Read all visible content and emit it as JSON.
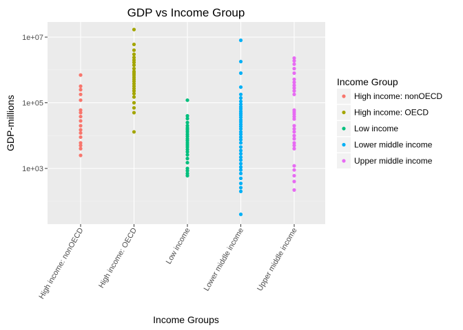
{
  "chart_data": {
    "type": "scatter",
    "title": "GDP vs Income Group",
    "xlabel": "Income Groups",
    "ylabel": "GDP-millions",
    "y_scale": "log10",
    "y_ticks": [
      1000,
      100000,
      10000000
    ],
    "y_tick_labels": [
      "1e+03",
      "1e+05",
      "1e+07"
    ],
    "ylim": [
      30,
      23000000
    ],
    "grid": true,
    "legend_position": "right",
    "legend_title": "Income Group",
    "categories": [
      "High income: nonOECD",
      "High income: OECD",
      "Low income",
      "Lower middle income",
      "Upper middle income"
    ],
    "series": [
      {
        "name": "High income: nonOECD",
        "color": "#F8766D",
        "values": [
          700000,
          320000,
          250000,
          180000,
          120000,
          60000,
          50000,
          38000,
          28000,
          20000,
          15000,
          12000,
          9000,
          6000,
          5000,
          4000,
          2500
        ]
      },
      {
        "name": "High income: OECD",
        "color": "#A3A500",
        "values": [
          17000000,
          6000000,
          4000000,
          3000000,
          2400000,
          2000000,
          1700000,
          1400000,
          1100000,
          900000,
          800000,
          700000,
          600000,
          520000,
          450000,
          380000,
          320000,
          270000,
          230000,
          190000,
          150000,
          100000,
          70000,
          50000,
          13000
        ]
      },
      {
        "name": "Low income",
        "color": "#00BF7D",
        "values": [
          120000,
          40000,
          33000,
          25000,
          20000,
          17000,
          15000,
          13000,
          11000,
          9500,
          8000,
          7000,
          6000,
          5200,
          4500,
          3800,
          3200,
          2600,
          2000,
          1500,
          1000,
          850,
          700,
          600
        ]
      },
      {
        "name": "Lower middle income",
        "color": "#00B0F6",
        "values": [
          8000000,
          1800000,
          800000,
          300000,
          180000,
          140000,
          110000,
          90000,
          75000,
          65000,
          55000,
          48000,
          42000,
          36000,
          30000,
          26000,
          22000,
          19000,
          16000,
          13000,
          11000,
          9000,
          7500,
          6000,
          4500,
          3500,
          2800,
          2200,
          1800,
          1400,
          1100,
          900,
          700,
          500,
          350,
          260,
          200,
          40
        ]
      },
      {
        "name": "Upper middle income",
        "color": "#E76BF3",
        "values": [
          2300000,
          1900000,
          1500000,
          1100000,
          800000,
          520000,
          420000,
          340000,
          280000,
          230000,
          180000,
          60000,
          52000,
          45000,
          38000,
          32000,
          20000,
          16000,
          13000,
          10000,
          8000,
          6000,
          5000,
          4000,
          1200,
          900,
          600,
          400,
          220
        ]
      }
    ]
  }
}
